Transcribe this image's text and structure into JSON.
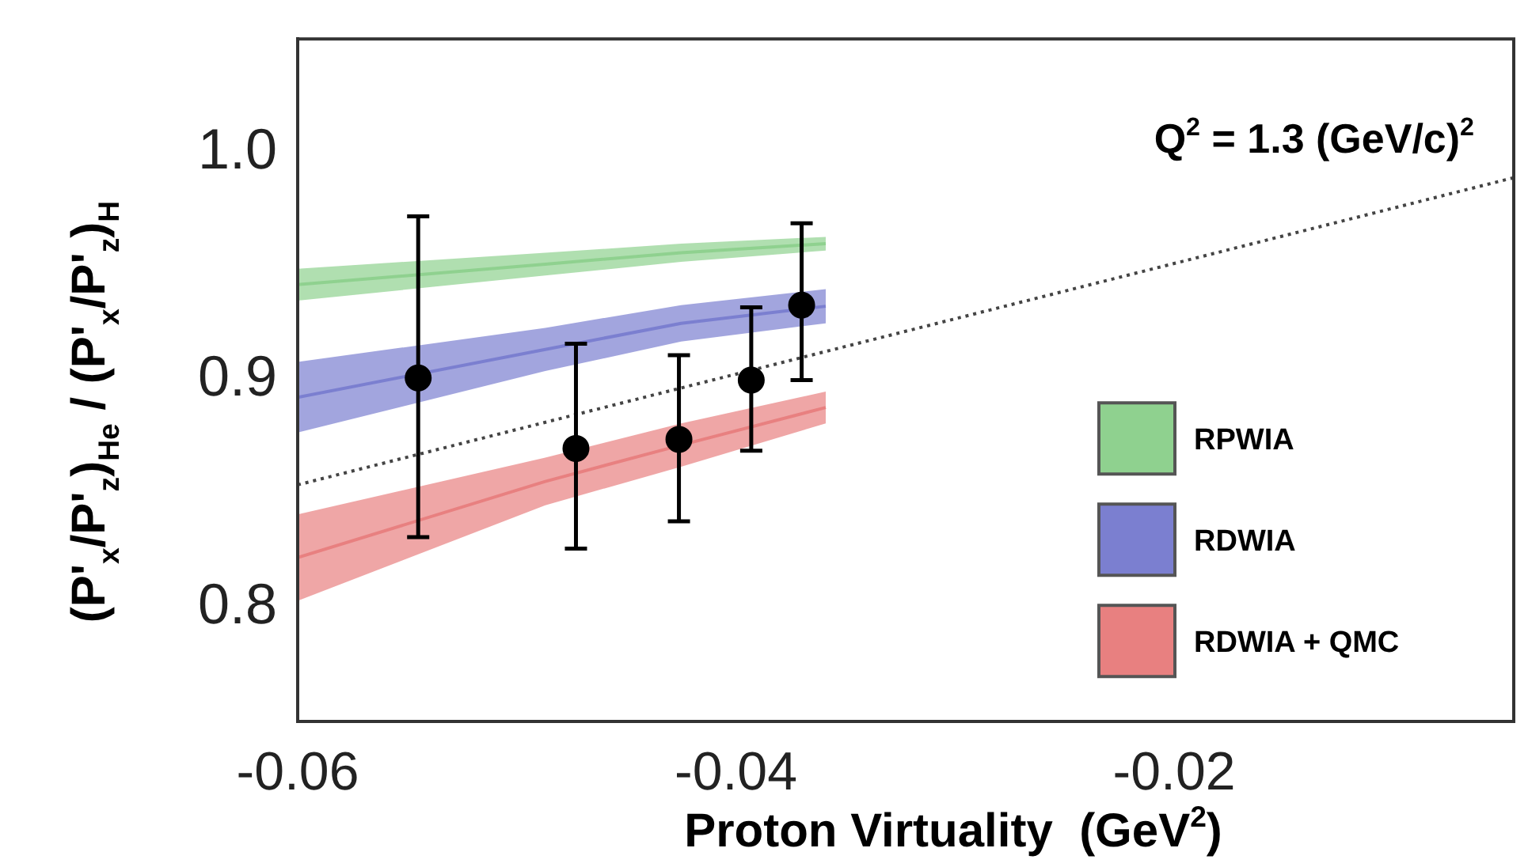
{
  "chart_data": {
    "type": "scatter",
    "xlabel": "Proton Virtuality  (GeV$^{2}$)",
    "ylabel": "(P'$_{x}$/P'$_{z}$)$_{He}$ / (P'$_{x}$/P'$_{z}$)$_{H}$",
    "annotations": [
      "Q$^{2}$ = 1.3 (GeV/c)$^{2}$"
    ],
    "xlim": [
      -0.06,
      -0.0045
    ],
    "xticks": [
      -0.06,
      -0.04,
      -0.02
    ],
    "ylim": [
      0.75,
      1.05
    ],
    "yticks": [
      {
        "value": 0.8,
        "label": "0.8"
      },
      {
        "value": 0.9,
        "label": "0.9"
      },
      {
        "value": 1.0,
        "label": "1.0"
      }
    ],
    "grid": false,
    "legend": "right",
    "series": [
      {
        "type": "line",
        "name": "RPWIA",
        "color": "#8fd18f",
        "x": [
          -0.06,
          -0.0487,
          -0.0425,
          -0.0359
        ],
        "values": [
          0.942,
          0.951,
          0.956,
          0.96
        ],
        "lower": [
          0.935,
          0.946,
          0.952,
          0.957
        ],
        "upper": [
          0.949,
          0.956,
          0.96,
          0.963
        ]
      },
      {
        "type": "line",
        "name": "RDWIA",
        "color": "#7b7fd0",
        "x": [
          -0.06,
          -0.0487,
          -0.0425,
          -0.0359
        ],
        "values": [
          0.8925,
          0.9135,
          0.925,
          0.9325
        ],
        "lower": [
          0.877,
          0.904,
          0.917,
          0.925
        ],
        "upper": [
          0.908,
          0.923,
          0.933,
          0.94
        ]
      },
      {
        "type": "line",
        "name": "RDWIA + QMC",
        "color": "#e88080",
        "x": [
          -0.06,
          -0.0487,
          -0.0425,
          -0.0359
        ],
        "values": [
          0.822,
          0.8555,
          0.8715,
          0.888
        ],
        "lower": [
          0.803,
          0.845,
          0.862,
          0.881
        ],
        "upper": [
          0.841,
          0.866,
          0.881,
          0.895
        ]
      },
      {
        "type": "line",
        "color": "#444444",
        "line_style": "dotted",
        "marker": "none",
        "x": [
          -0.06,
          -0.0045
        ],
        "values": [
          0.854,
          0.989
        ]
      },
      {
        "color": "#000000",
        "marker": "circle",
        "x": [
          -0.0545,
          -0.0473,
          -0.0426,
          -0.0393,
          -0.037
        ],
        "values": [
          0.901,
          0.87,
          0.874,
          0.9,
          0.933
        ],
        "errors": [
          [
            0.831,
            0.972
          ],
          [
            0.826,
            0.916
          ],
          [
            0.838,
            0.911
          ],
          [
            0.869,
            0.932
          ],
          [
            0.9,
            0.969
          ]
        ]
      }
    ]
  }
}
